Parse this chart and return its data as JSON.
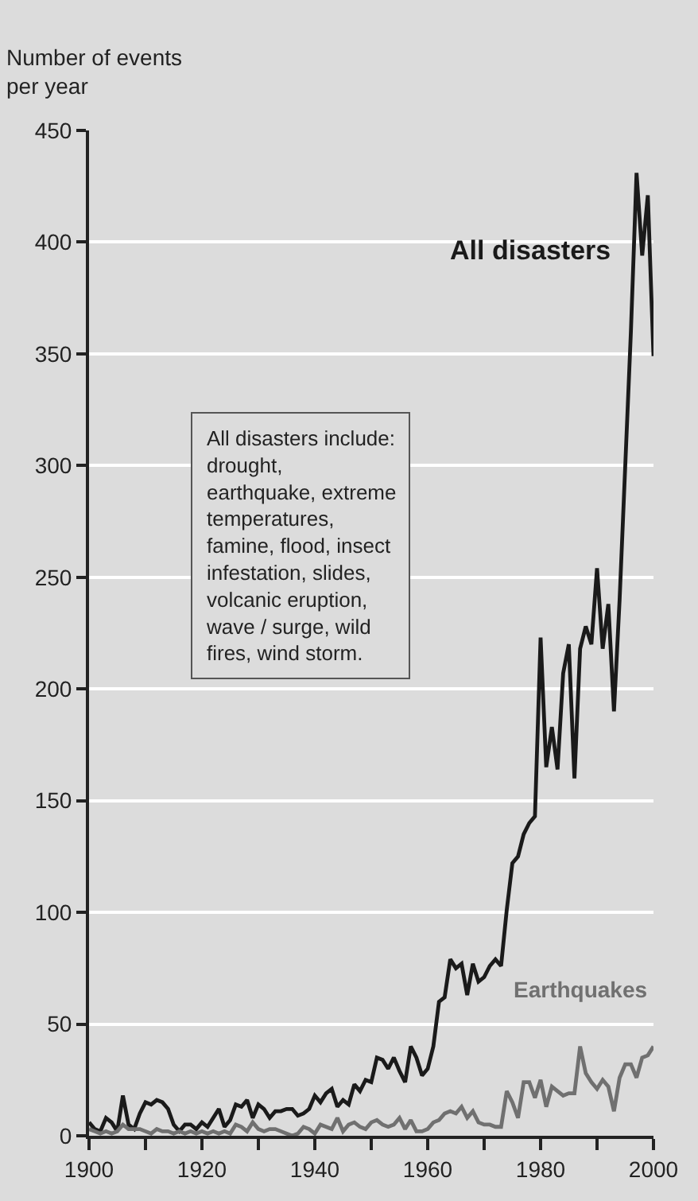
{
  "chart_data": {
    "type": "line",
    "ylabel": "Number of events\nper year",
    "x": [
      1900,
      1901,
      1902,
      1903,
      1904,
      1905,
      1906,
      1907,
      1908,
      1909,
      1910,
      1911,
      1912,
      1913,
      1914,
      1915,
      1916,
      1917,
      1918,
      1919,
      1920,
      1921,
      1922,
      1923,
      1924,
      1925,
      1926,
      1927,
      1928,
      1929,
      1930,
      1931,
      1932,
      1933,
      1934,
      1935,
      1936,
      1937,
      1938,
      1939,
      1940,
      1941,
      1942,
      1943,
      1944,
      1945,
      1946,
      1947,
      1948,
      1949,
      1950,
      1951,
      1952,
      1953,
      1954,
      1955,
      1956,
      1957,
      1958,
      1959,
      1960,
      1961,
      1962,
      1963,
      1964,
      1965,
      1966,
      1967,
      1968,
      1969,
      1970,
      1971,
      1972,
      1973,
      1974,
      1975,
      1976,
      1977,
      1978,
      1979,
      1980,
      1981,
      1982,
      1983,
      1984,
      1985,
      1986,
      1987,
      1988,
      1989,
      1990,
      1991,
      1992,
      1993,
      1994,
      1995,
      1996,
      1997,
      1998,
      1999,
      2000
    ],
    "series": [
      {
        "name": "All disasters",
        "color": "#1a1a1a",
        "values": [
          6,
          3,
          2,
          8,
          6,
          2,
          18,
          5,
          3,
          10,
          15,
          14,
          16,
          15,
          12,
          5,
          2,
          5,
          5,
          3,
          6,
          4,
          8,
          12,
          4,
          7,
          14,
          13,
          16,
          8,
          14,
          12,
          8,
          11,
          11,
          12,
          12,
          9,
          10,
          12,
          18,
          15,
          19,
          21,
          13,
          16,
          14,
          23,
          20,
          25,
          24,
          35,
          34,
          30,
          35,
          29,
          24,
          40,
          35,
          27,
          30,
          40,
          60,
          62,
          79,
          75,
          77,
          63,
          77,
          69,
          71,
          76,
          79,
          76,
          101,
          122,
          125,
          135,
          140,
          143,
          223,
          165,
          183,
          164,
          207,
          220,
          160,
          218,
          228,
          220,
          254,
          218,
          238,
          190,
          240,
          300,
          360,
          431,
          394,
          421,
          349
        ]
      },
      {
        "name": "Earthquakes",
        "color": "#707070",
        "values": [
          3,
          2,
          1,
          2,
          1,
          2,
          5,
          3,
          3,
          3,
          2,
          1,
          3,
          2,
          2,
          1,
          2,
          1,
          2,
          1,
          2,
          1,
          2,
          1,
          2,
          1,
          5,
          4,
          2,
          6,
          3,
          2,
          3,
          3,
          2,
          1,
          0,
          1,
          4,
          3,
          1,
          5,
          4,
          3,
          8,
          2,
          5,
          6,
          4,
          3,
          6,
          7,
          5,
          4,
          5,
          8,
          3,
          7,
          2,
          2,
          3,
          6,
          7,
          10,
          11,
          10,
          13,
          8,
          11,
          6,
          5,
          5,
          4,
          4,
          20,
          15,
          8,
          24,
          24,
          17,
          25,
          13,
          22,
          20,
          18,
          19,
          19,
          40,
          28,
          24,
          21,
          25,
          22,
          11,
          26,
          32,
          32,
          26,
          35,
          36,
          40
        ]
      }
    ],
    "xlim": [
      1900,
      2000
    ],
    "xticks": [
      1900,
      {
        "value": 1910,
        "label": null
      },
      1920,
      {
        "value": 1930,
        "label": null
      },
      1940,
      {
        "value": 1950,
        "label": null
      },
      1960,
      {
        "value": 1970,
        "label": null
      },
      1980,
      {
        "value": 1990,
        "label": null
      },
      2000
    ],
    "ylim": [
      0,
      450
    ],
    "yticks": [
      0,
      50,
      100,
      150,
      200,
      250,
      300,
      350,
      400,
      450
    ],
    "grid": "y",
    "legend": false,
    "annotations": [
      "All disasters include:\ndrought,\nearthquake, extreme\ntemperatures,\nfamine, flood, insect\ninfestation, slides,\nvolcanic eruption,\nwave / surge, wild\nfires, wind storm."
    ]
  }
}
